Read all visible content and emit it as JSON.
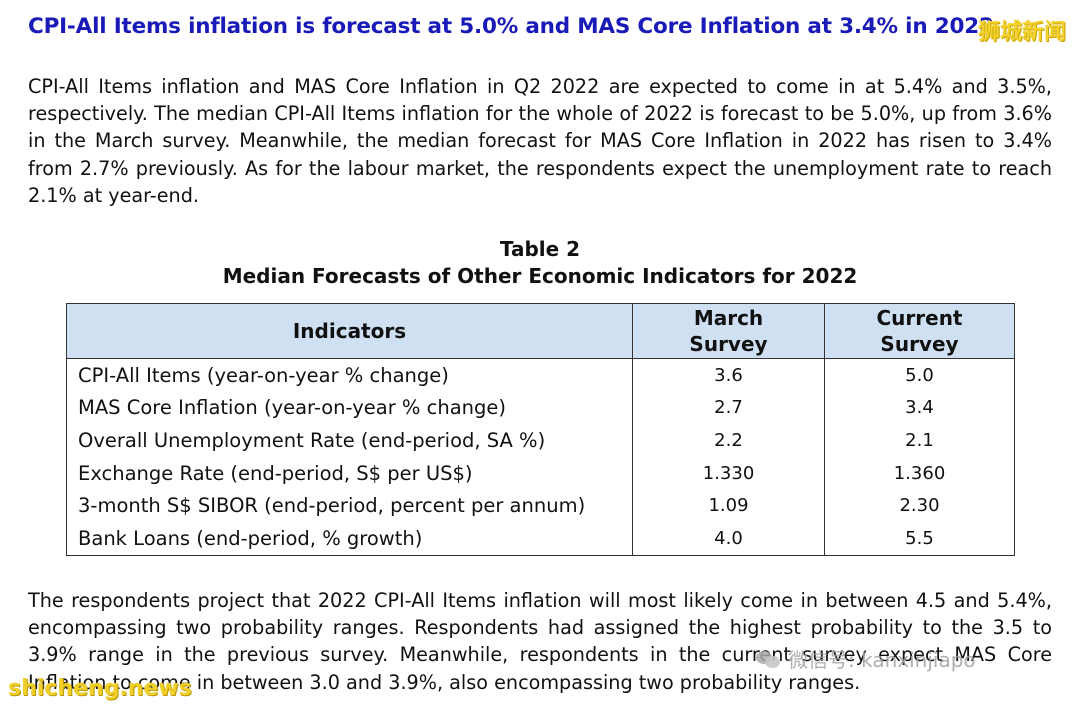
{
  "heading": "CPI-All Items inflation is forecast at 5.0% and MAS Core Inflation at 3.4% in 2022",
  "watermark_top": "狮城新闻",
  "paragraph_1": "CPI-All Items inflation and MAS Core Inflation in Q2 2022 are expected to come in at 5.4% and 3.5%, respectively. The median CPI-All Items inflation for the whole of 2022 is forecast to be 5.0%, up from 3.6% in the March survey. Meanwhile, the median forecast for MAS Core Inflation in 2022 has risen to 3.4% from 2.7% previously. As for the labour market, the respondents expect the unemployment rate to reach 2.1% at year-end.",
  "table": {
    "number": "Table 2",
    "title": "Median Forecasts of Other Economic Indicators for 2022",
    "headers": {
      "indicators": "Indicators",
      "march_line1": "March",
      "march_line2": "Survey",
      "current_line1": "Current",
      "current_line2": "Survey"
    },
    "rows": [
      {
        "indicator": "CPI-All Items (year-on-year % change)",
        "march": "3.6",
        "current": "5.0"
      },
      {
        "indicator": "MAS Core Inflation (year-on-year % change)",
        "march": "2.7",
        "current": "3.4"
      },
      {
        "indicator": "Overall Unemployment Rate (end-period, SA %)",
        "march": "2.2",
        "current": "2.1"
      },
      {
        "indicator": "Exchange Rate (end-period, S$ per US$)",
        "march": "1.330",
        "current": "1.360"
      },
      {
        "indicator": "3-month S$ SIBOR (end-period, percent per annum)",
        "march": "1.09",
        "current": "2.30"
      },
      {
        "indicator": "Bank Loans (end-period, % growth)",
        "march": "4.0",
        "current": "5.5"
      }
    ]
  },
  "paragraph_2": "The respondents project that 2022 CPI-All Items inflation will most likely come in between 4.5 and 5.4%, encompassing two probability ranges. Respondents had assigned the highest probability to the 3.5 to 3.9% range in the previous survey. Meanwhile, respondents in the current survey expect MAS Core Inflation to come in between 3.0 and 3.9%, also encompassing two probability ranges.",
  "watermark_wechat": "微信号: kanxinjiapo",
  "watermark_bottom": "shicheng.news",
  "colors": {
    "heading": "#1a1ab8",
    "table_header_bg": "#cfe0f3",
    "watermark": "#f2d12c"
  }
}
